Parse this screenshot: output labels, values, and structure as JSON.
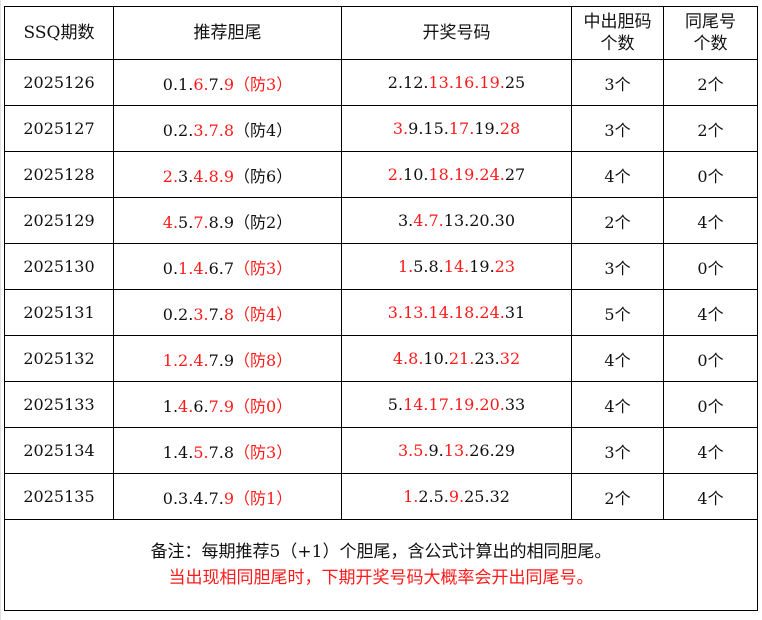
{
  "headers": [
    "SSQ期数",
    "推荐胆尾",
    "开奖号码",
    "中出胆码个数",
    "同尾号个数"
  ],
  "header_lines": {
    "hit": [
      "中出胆码",
      "个数"
    ],
    "same": [
      "同尾号",
      "个数"
    ]
  },
  "colors": {
    "highlight": "#ff1a1a",
    "text": "#111111"
  },
  "rows": [
    {
      "period": "2025126",
      "rec": [
        {
          "t": "0.1.",
          "r": 0
        },
        {
          "t": "6.",
          "r": 1
        },
        {
          "t": "7.",
          "r": 0
        },
        {
          "t": "9（防3）",
          "r": 1
        }
      ],
      "draw": [
        {
          "t": "2.12.",
          "r": 0
        },
        {
          "t": "13.16.19.",
          "r": 1
        },
        {
          "t": "25",
          "r": 0
        }
      ],
      "hit": "3个",
      "same": "2个"
    },
    {
      "period": "2025127",
      "rec": [
        {
          "t": "0.2.",
          "r": 0
        },
        {
          "t": "3.7.8",
          "r": 1
        },
        {
          "t": "（防4）",
          "r": 0
        }
      ],
      "draw": [
        {
          "t": "3.",
          "r": 1
        },
        {
          "t": "9.15.",
          "r": 0
        },
        {
          "t": "17.",
          "r": 1
        },
        {
          "t": "19.",
          "r": 0
        },
        {
          "t": "28",
          "r": 1
        }
      ],
      "hit": "3个",
      "same": "2个"
    },
    {
      "period": "2025128",
      "rec": [
        {
          "t": "2.",
          "r": 1
        },
        {
          "t": "3.",
          "r": 0
        },
        {
          "t": "4.8.9",
          "r": 1
        },
        {
          "t": "（防6）",
          "r": 0
        }
      ],
      "draw": [
        {
          "t": "2.",
          "r": 1
        },
        {
          "t": "10.",
          "r": 0
        },
        {
          "t": "18.19.24.",
          "r": 1
        },
        {
          "t": "27",
          "r": 0
        }
      ],
      "hit": "4个",
      "same": "0个"
    },
    {
      "period": "2025129",
      "rec": [
        {
          "t": "4.",
          "r": 1
        },
        {
          "t": "5.",
          "r": 0
        },
        {
          "t": "7.",
          "r": 1
        },
        {
          "t": "8.9（防2）",
          "r": 0
        }
      ],
      "draw": [
        {
          "t": "3.",
          "r": 0
        },
        {
          "t": "4.7.",
          "r": 1
        },
        {
          "t": "13.20.30",
          "r": 0
        }
      ],
      "hit": "2个",
      "same": "4个"
    },
    {
      "period": "2025130",
      "rec": [
        {
          "t": "0.",
          "r": 0
        },
        {
          "t": "1.4.",
          "r": 1
        },
        {
          "t": "6.7",
          "r": 0
        },
        {
          "t": "（防3）",
          "r": 1
        }
      ],
      "draw": [
        {
          "t": "1.",
          "r": 1
        },
        {
          "t": "5.8.",
          "r": 0
        },
        {
          "t": "14.",
          "r": 1
        },
        {
          "t": "19.",
          "r": 0
        },
        {
          "t": "23",
          "r": 1
        }
      ],
      "hit": "3个",
      "same": "0个"
    },
    {
      "period": "2025131",
      "rec": [
        {
          "t": "0.2.",
          "r": 0
        },
        {
          "t": "3.",
          "r": 1
        },
        {
          "t": "7.",
          "r": 0
        },
        {
          "t": "8（防4）",
          "r": 1
        }
      ],
      "draw": [
        {
          "t": "3.13.14.18.24.",
          "r": 1
        },
        {
          "t": "31",
          "r": 0
        }
      ],
      "hit": "5个",
      "same": "4个"
    },
    {
      "period": "2025132",
      "rec": [
        {
          "t": "1.2.4.",
          "r": 1
        },
        {
          "t": "7.9",
          "r": 0
        },
        {
          "t": "（防8）",
          "r": 1
        }
      ],
      "draw": [
        {
          "t": "4.8.",
          "r": 1
        },
        {
          "t": "10.",
          "r": 0
        },
        {
          "t": "21.",
          "r": 1
        },
        {
          "t": "23.",
          "r": 0
        },
        {
          "t": "32",
          "r": 1
        }
      ],
      "hit": "4个",
      "same": "0个"
    },
    {
      "period": "2025133",
      "rec": [
        {
          "t": "1.",
          "r": 0
        },
        {
          "t": "4.",
          "r": 1
        },
        {
          "t": "6.",
          "r": 0
        },
        {
          "t": "7.9（防0）",
          "r": 1
        }
      ],
      "draw": [
        {
          "t": "5.",
          "r": 0
        },
        {
          "t": "14.17.19.20.",
          "r": 1
        },
        {
          "t": "33",
          "r": 0
        }
      ],
      "hit": "4个",
      "same": "0个"
    },
    {
      "period": "2025134",
      "rec": [
        {
          "t": "1.4.",
          "r": 0
        },
        {
          "t": "5.",
          "r": 1
        },
        {
          "t": "7.8",
          "r": 0
        },
        {
          "t": "（防3）",
          "r": 1
        }
      ],
      "draw": [
        {
          "t": "3.5.",
          "r": 1
        },
        {
          "t": "9.",
          "r": 0
        },
        {
          "t": "13.",
          "r": 1
        },
        {
          "t": "26.29",
          "r": 0
        }
      ],
      "hit": "3个",
      "same": "4个"
    },
    {
      "period": "2025135",
      "rec": [
        {
          "t": "0.3.4.7.",
          "r": 0
        },
        {
          "t": "9（防1）",
          "r": 1
        }
      ],
      "draw": [
        {
          "t": "1.",
          "r": 1
        },
        {
          "t": "2.5.",
          "r": 0
        },
        {
          "t": "9.",
          "r": 1
        },
        {
          "t": "25.32",
          "r": 0
        }
      ],
      "hit": "2个",
      "same": "4个"
    }
  ],
  "note": {
    "line1": "备注：每期推荐5（+1）个胆尾，含公式计算出的相同胆尾。",
    "line2": "当出现相同胆尾时，下期开奖号码大概率会开出同尾号。"
  }
}
